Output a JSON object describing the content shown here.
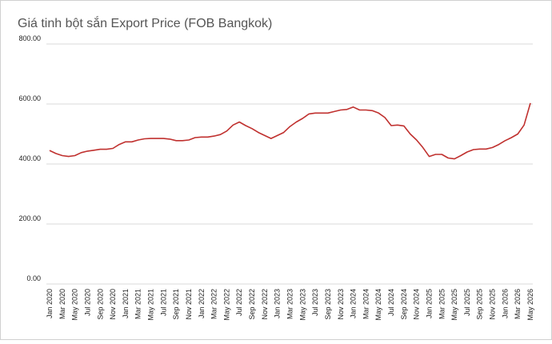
{
  "chart_data": {
    "type": "line",
    "title": "Giá tinh bột sắn Export Price (FOB Bangkok)",
    "categories": [
      "Jan 2020",
      null,
      "Mar 2020",
      null,
      "May 2020",
      null,
      "Jul 2020",
      null,
      "Sep 2020",
      null,
      "Nov 2020",
      null,
      "Jan 2021",
      null,
      "Mar 2021",
      null,
      "May 2021",
      null,
      "Jul 2021",
      null,
      "Sep 2021",
      null,
      "Nov 2021",
      null,
      "Jan 2022",
      null,
      "Mar 2022",
      null,
      "May 2022",
      null,
      "Jul 2022",
      null,
      "Sep 2022",
      null,
      "Nov 2022",
      null,
      "Jan 2023",
      null,
      "Mar 2023",
      null,
      "May 2023",
      null,
      "Jul 2023",
      null,
      "Sep 2023",
      null,
      "Nov 2023",
      null,
      "Jan 2024",
      null,
      "Mar 2024",
      null,
      "May 2024",
      null,
      "Jul 2024",
      null,
      "Sep 2024",
      null,
      "Nov 2024",
      null,
      "Jan 2025",
      null,
      "Mar 2025",
      null,
      "May 2025",
      null,
      "Jul 2025",
      null,
      "Sep 2025",
      null,
      "Nov 2025",
      null,
      "Jan 2026",
      null,
      "Mar 2026",
      null,
      "May 2026"
    ],
    "series": [
      {
        "name": "Export Price",
        "color": "#c0312f",
        "values": [
          445,
          435,
          428,
          425,
          428,
          438,
          443,
          446,
          449,
          449,
          452,
          465,
          474,
          474,
          480,
          484,
          485,
          485,
          485,
          483,
          478,
          478,
          480,
          488,
          490,
          490,
          493,
          498,
          510,
          530,
          540,
          528,
          518,
          505,
          495,
          485,
          495,
          505,
          525,
          540,
          552,
          567,
          570,
          570,
          570,
          575,
          580,
          582,
          590,
          580,
          580,
          578,
          570,
          555,
          528,
          530,
          527,
          500,
          480,
          455,
          425,
          432,
          432,
          420,
          417,
          428,
          440,
          448,
          450,
          450,
          455,
          465,
          478,
          488,
          500,
          530,
          603
        ]
      }
    ],
    "ylim": [
      0,
      800
    ],
    "yticks": [
      {
        "value": 0,
        "label": "0.00"
      },
      {
        "value": 200,
        "label": "200.00"
      },
      {
        "value": 400,
        "label": "400.00"
      },
      {
        "value": 600,
        "label": "600.00"
      },
      {
        "value": 800,
        "label": "800.00"
      }
    ],
    "grid": true
  }
}
